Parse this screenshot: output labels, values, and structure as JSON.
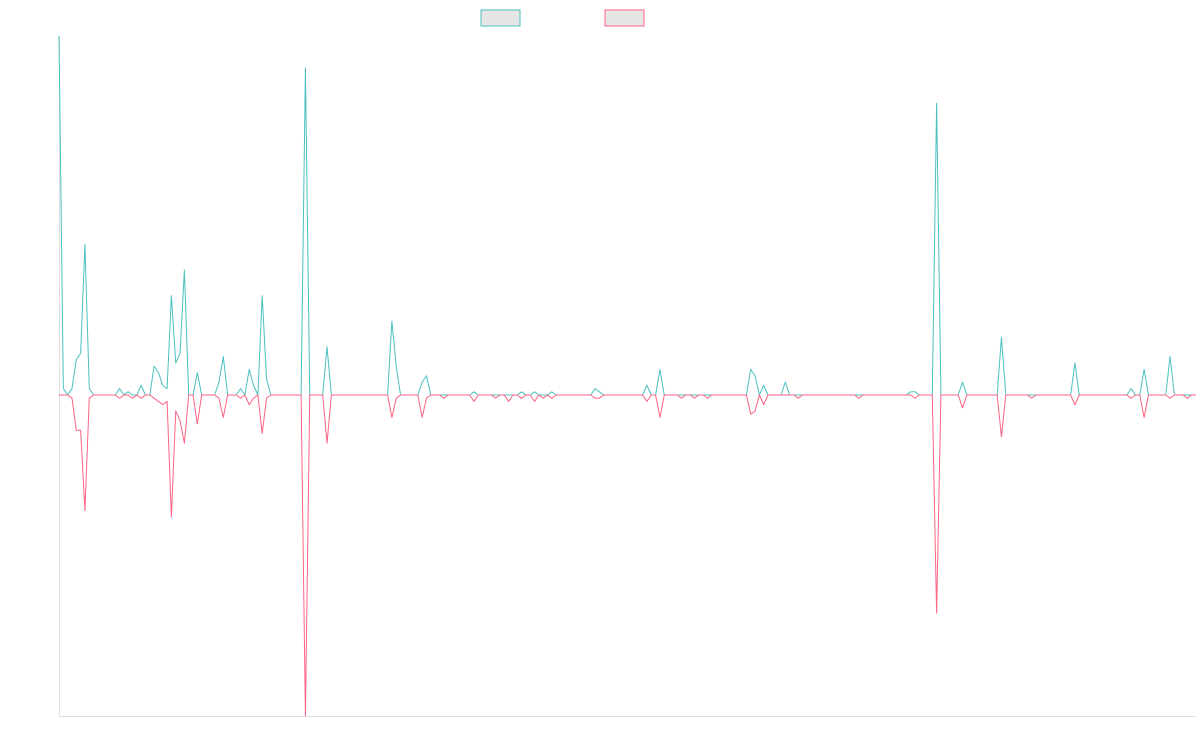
{
  "chart_data": {
    "type": "line",
    "title": "",
    "xlabel": "",
    "ylabel": "",
    "grid": false,
    "legend_placement": "top-center",
    "xlim": [
      0,
      251
    ],
    "ylim": [
      -1.0,
      1.12
    ],
    "series": [
      {
        "color": "#4bc0c0",
        "fill": "#e6e6e6",
        "values": [
          1.12,
          0.02,
          0.0,
          0.02,
          0.11,
          0.13,
          0.47,
          0.02,
          0.0,
          0.0,
          0.0,
          0.0,
          0.0,
          0.0,
          0.02,
          0.0,
          0.01,
          0.0,
          0.0,
          0.03,
          0.0,
          0.0,
          0.09,
          0.07,
          0.03,
          0.02,
          0.31,
          0.1,
          0.13,
          0.39,
          0.0,
          0.0,
          0.07,
          0.0,
          0.0,
          0.0,
          0.0,
          0.04,
          0.12,
          0.0,
          0.0,
          0.0,
          0.02,
          0.0,
          0.08,
          0.03,
          0.0,
          0.31,
          0.05,
          0.0,
          0.0,
          0.0,
          0.0,
          0.0,
          0.0,
          0.0,
          0.0,
          0.0,
          0.0,
          0.0,
          0.0,
          0.0,
          0.0,
          0.0,
          0.0,
          0.0,
          0.0,
          0.0,
          0.0,
          0.0,
          0.0,
          0.0,
          0.0,
          0.0,
          0.0,
          0.0,
          0.0,
          0.0,
          0.0,
          0.0,
          0.0,
          0.0,
          0.0,
          0.0,
          0.0,
          0.0,
          0.0,
          0.0,
          0.0,
          0.0,
          0.0,
          0.0,
          0.0,
          0.0,
          0.0,
          0.0,
          0.0,
          0.0,
          0.0,
          0.0,
          0.0,
          0.0,
          0.0,
          0.0,
          0.0,
          0.0,
          0.0,
          0.0,
          0.0,
          0.0,
          0.0,
          0.0,
          0.0,
          0.0,
          0.0,
          0.0,
          0.0,
          0.0,
          0.0,
          0.0,
          0.0,
          0.0,
          0.0,
          0.0,
          0.0,
          0.0,
          0.0,
          0.0,
          0.0,
          0.0,
          0.0,
          0.0,
          0.0,
          0.0,
          0.0,
          0.0,
          0.0,
          0.0,
          0.0,
          0.0,
          0.0,
          0.0,
          0.0,
          0.0,
          0.0,
          0.0,
          0.0,
          0.0,
          0.0,
          0.0,
          0.0,
          0.0,
          0.0,
          0.0,
          0.0,
          0.0,
          0.0,
          0.0,
          0.0,
          0.0,
          0.0,
          0.0,
          0.0,
          0.0,
          0.0,
          0.0,
          0.0,
          0.0,
          0.0,
          0.0,
          0.0,
          0.0,
          0.0,
          0.0,
          0.0,
          0.0,
          0.0,
          0.0,
          0.0,
          0.0,
          0.0,
          0.0,
          0.0,
          0.0,
          0.0,
          0.0,
          0.0,
          0.0,
          0.0,
          0.0,
          0.0,
          0.0,
          0.0,
          0.0,
          0.0,
          0.0,
          0.0,
          0.0,
          0.0,
          0.0,
          0.0,
          0.0,
          0.0,
          0.0,
          0.0,
          0.0,
          0.0,
          0.0,
          0.0,
          0.0,
          0.0,
          0.0,
          0.0,
          0.0,
          0.0,
          0.0,
          0.0,
          0.0,
          0.0,
          0.0,
          0.0,
          0.0,
          0.0,
          0.0,
          0.0,
          0.0,
          0.0,
          0.0,
          0.0,
          0.0,
          0.0,
          0.0,
          0.0,
          0.0,
          0.0,
          0.0,
          0.0,
          0.0,
          0.0,
          0.0,
          0.0,
          0.0,
          0.0,
          0.0,
          0.0,
          0.0,
          0.0,
          0.0
        ]
      },
      {
        "color": "#ff6384",
        "fill": "#e6e6e6",
        "values": [
          0.0,
          0.0,
          0.0,
          -0.01,
          -0.11,
          -0.11,
          -0.36,
          -0.01,
          0.0,
          0.0,
          0.0,
          0.0,
          0.0,
          0.0,
          -0.01,
          0.0,
          0.0,
          -0.01,
          0.0,
          -0.01,
          0.0,
          0.0,
          -0.01,
          -0.02,
          -0.03,
          -0.02,
          -0.38,
          -0.05,
          -0.08,
          -0.15,
          0.0,
          0.0,
          -0.09,
          0.0,
          0.0,
          0.0,
          0.0,
          -0.01,
          -0.07,
          0.0,
          0.0,
          0.0,
          -0.01,
          0.0,
          -0.03,
          -0.01,
          0.0,
          -0.12,
          -0.01,
          0.0,
          0.0,
          0.0,
          0.0,
          0.0,
          0.0,
          0.0,
          0.0,
          0.0,
          0.0,
          0.0,
          0.0,
          0.0,
          0.0,
          0.0,
          0.0,
          0.0,
          0.0,
          0.0,
          0.0,
          0.0,
          0.0,
          0.0,
          0.0,
          0.0,
          0.0,
          0.0,
          0.0,
          0.0,
          0.0,
          0.0,
          0.0,
          0.0,
          0.0,
          0.0,
          0.0,
          0.0,
          0.0,
          0.0,
          0.0,
          0.0,
          0.0,
          0.0,
          0.0,
          0.0,
          0.0,
          0.0,
          0.0,
          0.0,
          0.0,
          0.0,
          0.0,
          0.0,
          0.0,
          0.0,
          0.0,
          0.0,
          0.0,
          0.0,
          0.0,
          0.0,
          0.0,
          0.0,
          0.0,
          0.0,
          0.0,
          0.0,
          0.0,
          0.0,
          0.0,
          0.0,
          0.0,
          0.0,
          0.0,
          0.0,
          0.0,
          0.0,
          0.0,
          0.0,
          0.0,
          0.0,
          0.0,
          0.0,
          0.0,
          0.0,
          0.0,
          0.0,
          0.0,
          0.0,
          0.0,
          0.0,
          0.0,
          0.0,
          0.0,
          0.0,
          0.0,
          0.0,
          0.0,
          0.0,
          0.0,
          0.0,
          0.0,
          0.0,
          0.0,
          0.0,
          0.0,
          0.0,
          0.0,
          0.0,
          0.0,
          0.0,
          0.0,
          0.0,
          0.0,
          0.0,
          0.0,
          0.0,
          0.0,
          0.0,
          0.0,
          0.0,
          0.0,
          0.0,
          0.0,
          0.0,
          0.0,
          0.0,
          0.0,
          0.0,
          0.0,
          0.0,
          0.0,
          0.0,
          0.0,
          0.0,
          0.0,
          0.0,
          0.0,
          0.0,
          0.0,
          0.0,
          0.0,
          0.0,
          0.0,
          0.0,
          0.0,
          0.0,
          0.0,
          0.0,
          0.0,
          0.0,
          0.0,
          0.0,
          0.0,
          0.0,
          0.0,
          0.0,
          0.0,
          0.0,
          0.0,
          0.0,
          0.0,
          0.0,
          0.0,
          0.0,
          0.0,
          0.0,
          0.0,
          0.0,
          0.0,
          0.0,
          0.0,
          0.0,
          0.0,
          0.0,
          0.0,
          0.0,
          0.0,
          0.0,
          0.0,
          0.0,
          0.0,
          0.0,
          0.0,
          0.0,
          0.0,
          0.0,
          0.0,
          0.0,
          0.0,
          0.0,
          0.0,
          0.0,
          0.0,
          0.0,
          0.0,
          0.0,
          0.0,
          0.0,
          0.0,
          0.0,
          0.0,
          0.0,
          0.0,
          0.0
        ]
      }
    ],
    "spikes": [
      {
        "x": 57,
        "upper": 1.02,
        "lower": -1.0
      },
      {
        "x": 62,
        "upper": 0.15,
        "lower": -0.15
      },
      {
        "x": 77,
        "upper": 0.23,
        "lower": -0.07
      },
      {
        "x": 78,
        "upper": 0.09,
        "lower": -0.01
      },
      {
        "x": 84,
        "upper": 0.04,
        "lower": -0.07
      },
      {
        "x": 85,
        "upper": 0.06,
        "lower": -0.01
      },
      {
        "x": 89,
        "upper": 0.0,
        "lower": -0.01
      },
      {
        "x": 96,
        "upper": 0.01,
        "lower": -0.02
      },
      {
        "x": 101,
        "upper": 0.0,
        "lower": -0.01
      },
      {
        "x": 104,
        "upper": 0.0,
        "lower": -0.02
      },
      {
        "x": 107,
        "upper": 0.01,
        "lower": -0.01
      },
      {
        "x": 110,
        "upper": 0.01,
        "lower": -0.02
      },
      {
        "x": 112,
        "upper": 0.0,
        "lower": -0.01
      },
      {
        "x": 114,
        "upper": 0.01,
        "lower": -0.01
      },
      {
        "x": 124,
        "upper": 0.02,
        "lower": -0.01
      },
      {
        "x": 125,
        "upper": 0.01,
        "lower": -0.01
      },
      {
        "x": 136,
        "upper": 0.03,
        "lower": -0.02
      },
      {
        "x": 139,
        "upper": 0.08,
        "lower": -0.07
      },
      {
        "x": 144,
        "upper": 0.0,
        "lower": -0.01
      },
      {
        "x": 147,
        "upper": 0.0,
        "lower": -0.01
      },
      {
        "x": 150,
        "upper": 0.0,
        "lower": -0.01
      },
      {
        "x": 160,
        "upper": 0.08,
        "lower": -0.06
      },
      {
        "x": 161,
        "upper": 0.06,
        "lower": -0.05
      },
      {
        "x": 163,
        "upper": 0.03,
        "lower": -0.03
      },
      {
        "x": 168,
        "upper": 0.04,
        "lower": 0.0
      },
      {
        "x": 171,
        "upper": 0.0,
        "lower": -0.01
      },
      {
        "x": 185,
        "upper": 0.0,
        "lower": -0.01
      },
      {
        "x": 197,
        "upper": 0.01,
        "lower": 0.0
      },
      {
        "x": 198,
        "upper": 0.01,
        "lower": -0.01
      },
      {
        "x": 203,
        "upper": 0.91,
        "lower": -0.68
      },
      {
        "x": 209,
        "upper": 0.04,
        "lower": -0.04
      },
      {
        "x": 218,
        "upper": 0.18,
        "lower": -0.13
      },
      {
        "x": 225,
        "upper": 0.0,
        "lower": -0.01
      },
      {
        "x": 235,
        "upper": 0.1,
        "lower": -0.03
      },
      {
        "x": 248,
        "upper": 0.02,
        "lower": -0.01
      },
      {
        "x": 251,
        "upper": 0.08,
        "lower": -0.07
      },
      {
        "x": 257,
        "upper": 0.12,
        "lower": -0.01
      },
      {
        "x": 261,
        "upper": 0.0,
        "lower": -0.01
      }
    ]
  }
}
